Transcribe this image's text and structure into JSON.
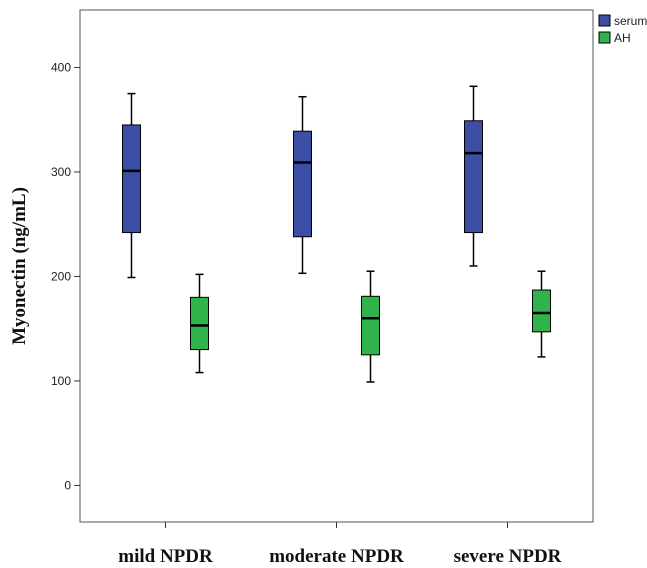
{
  "chart_data": {
    "type": "boxplot",
    "title": "",
    "ylabel": "Myonectin (ng/mL)",
    "xlabel": "",
    "ylim": [
      -35,
      455
    ],
    "yticks": [
      0,
      100,
      200,
      300,
      400
    ],
    "grid": false,
    "legend_position": "top-right",
    "categories": [
      "mild NPDR",
      "moderate NPDR",
      "severe NPDR"
    ],
    "series": [
      {
        "name": "serum",
        "color": "#3b4fa6",
        "boxes": [
          {
            "whisker_low": 199,
            "q1": 242,
            "median": 301,
            "q3": 345,
            "whisker_high": 375
          },
          {
            "whisker_low": 203,
            "q1": 238,
            "median": 309,
            "q3": 339,
            "whisker_high": 372
          },
          {
            "whisker_low": 210,
            "q1": 242,
            "median": 318,
            "q3": 349,
            "whisker_high": 382
          }
        ]
      },
      {
        "name": "AH",
        "color": "#2fb34a",
        "boxes": [
          {
            "whisker_low": 108,
            "q1": 130,
            "median": 153,
            "q3": 180,
            "whisker_high": 202
          },
          {
            "whisker_low": 99,
            "q1": 125,
            "median": 160,
            "q3": 181,
            "whisker_high": 205
          },
          {
            "whisker_low": 123,
            "q1": 147,
            "median": 165,
            "q3": 187,
            "whisker_high": 205
          }
        ]
      }
    ]
  }
}
